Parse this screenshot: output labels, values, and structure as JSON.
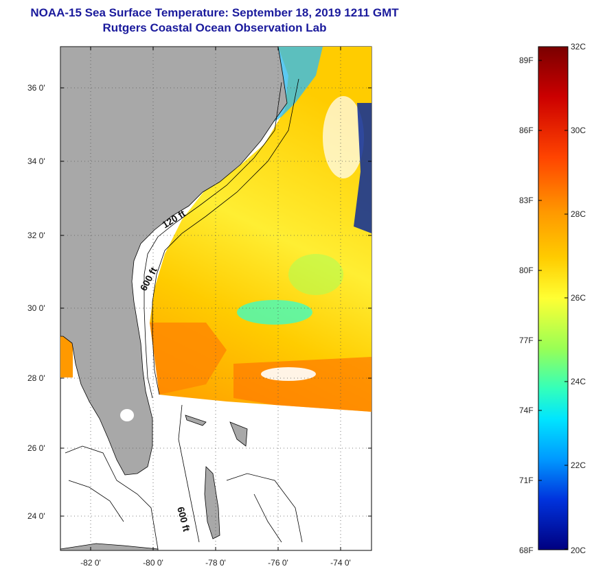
{
  "title": {
    "line1": "NOAA-15 Sea Surface Temperature:  September 18, 2019 1211 GMT",
    "line2": "Rutgers Coastal Ocean Observation Lab"
  },
  "map": {
    "lat_ticks": [
      "36 0'",
      "34 0'",
      "32 0'",
      "30 0'",
      "28 0'",
      "26 0'",
      "24 0'"
    ],
    "lon_ticks": [
      "-82 0'",
      "-80 0'",
      "-78 0'",
      "-76 0'",
      "-74 0'"
    ],
    "contour_labels": [
      "120 ft",
      "600 ft",
      "600 ft"
    ]
  },
  "colorbar": {
    "fahrenheit_labels": [
      "89F",
      "86F",
      "83F",
      "80F",
      "77F",
      "74F",
      "71F",
      "68F"
    ],
    "celsius_labels": [
      "32C",
      "30C",
      "28C",
      "26C",
      "24C",
      "22C",
      "20C"
    ],
    "colors": [
      "#7a0000",
      "#cc0000",
      "#ff3300",
      "#ff8800",
      "#ffcc00",
      "#ffff33",
      "#aaff55",
      "#44ffaa",
      "#00e5ff",
      "#0088ff",
      "#0033dd",
      "#000080"
    ]
  },
  "colors": {
    "land": "#a8a8a8",
    "title": "#1a1a9c"
  }
}
